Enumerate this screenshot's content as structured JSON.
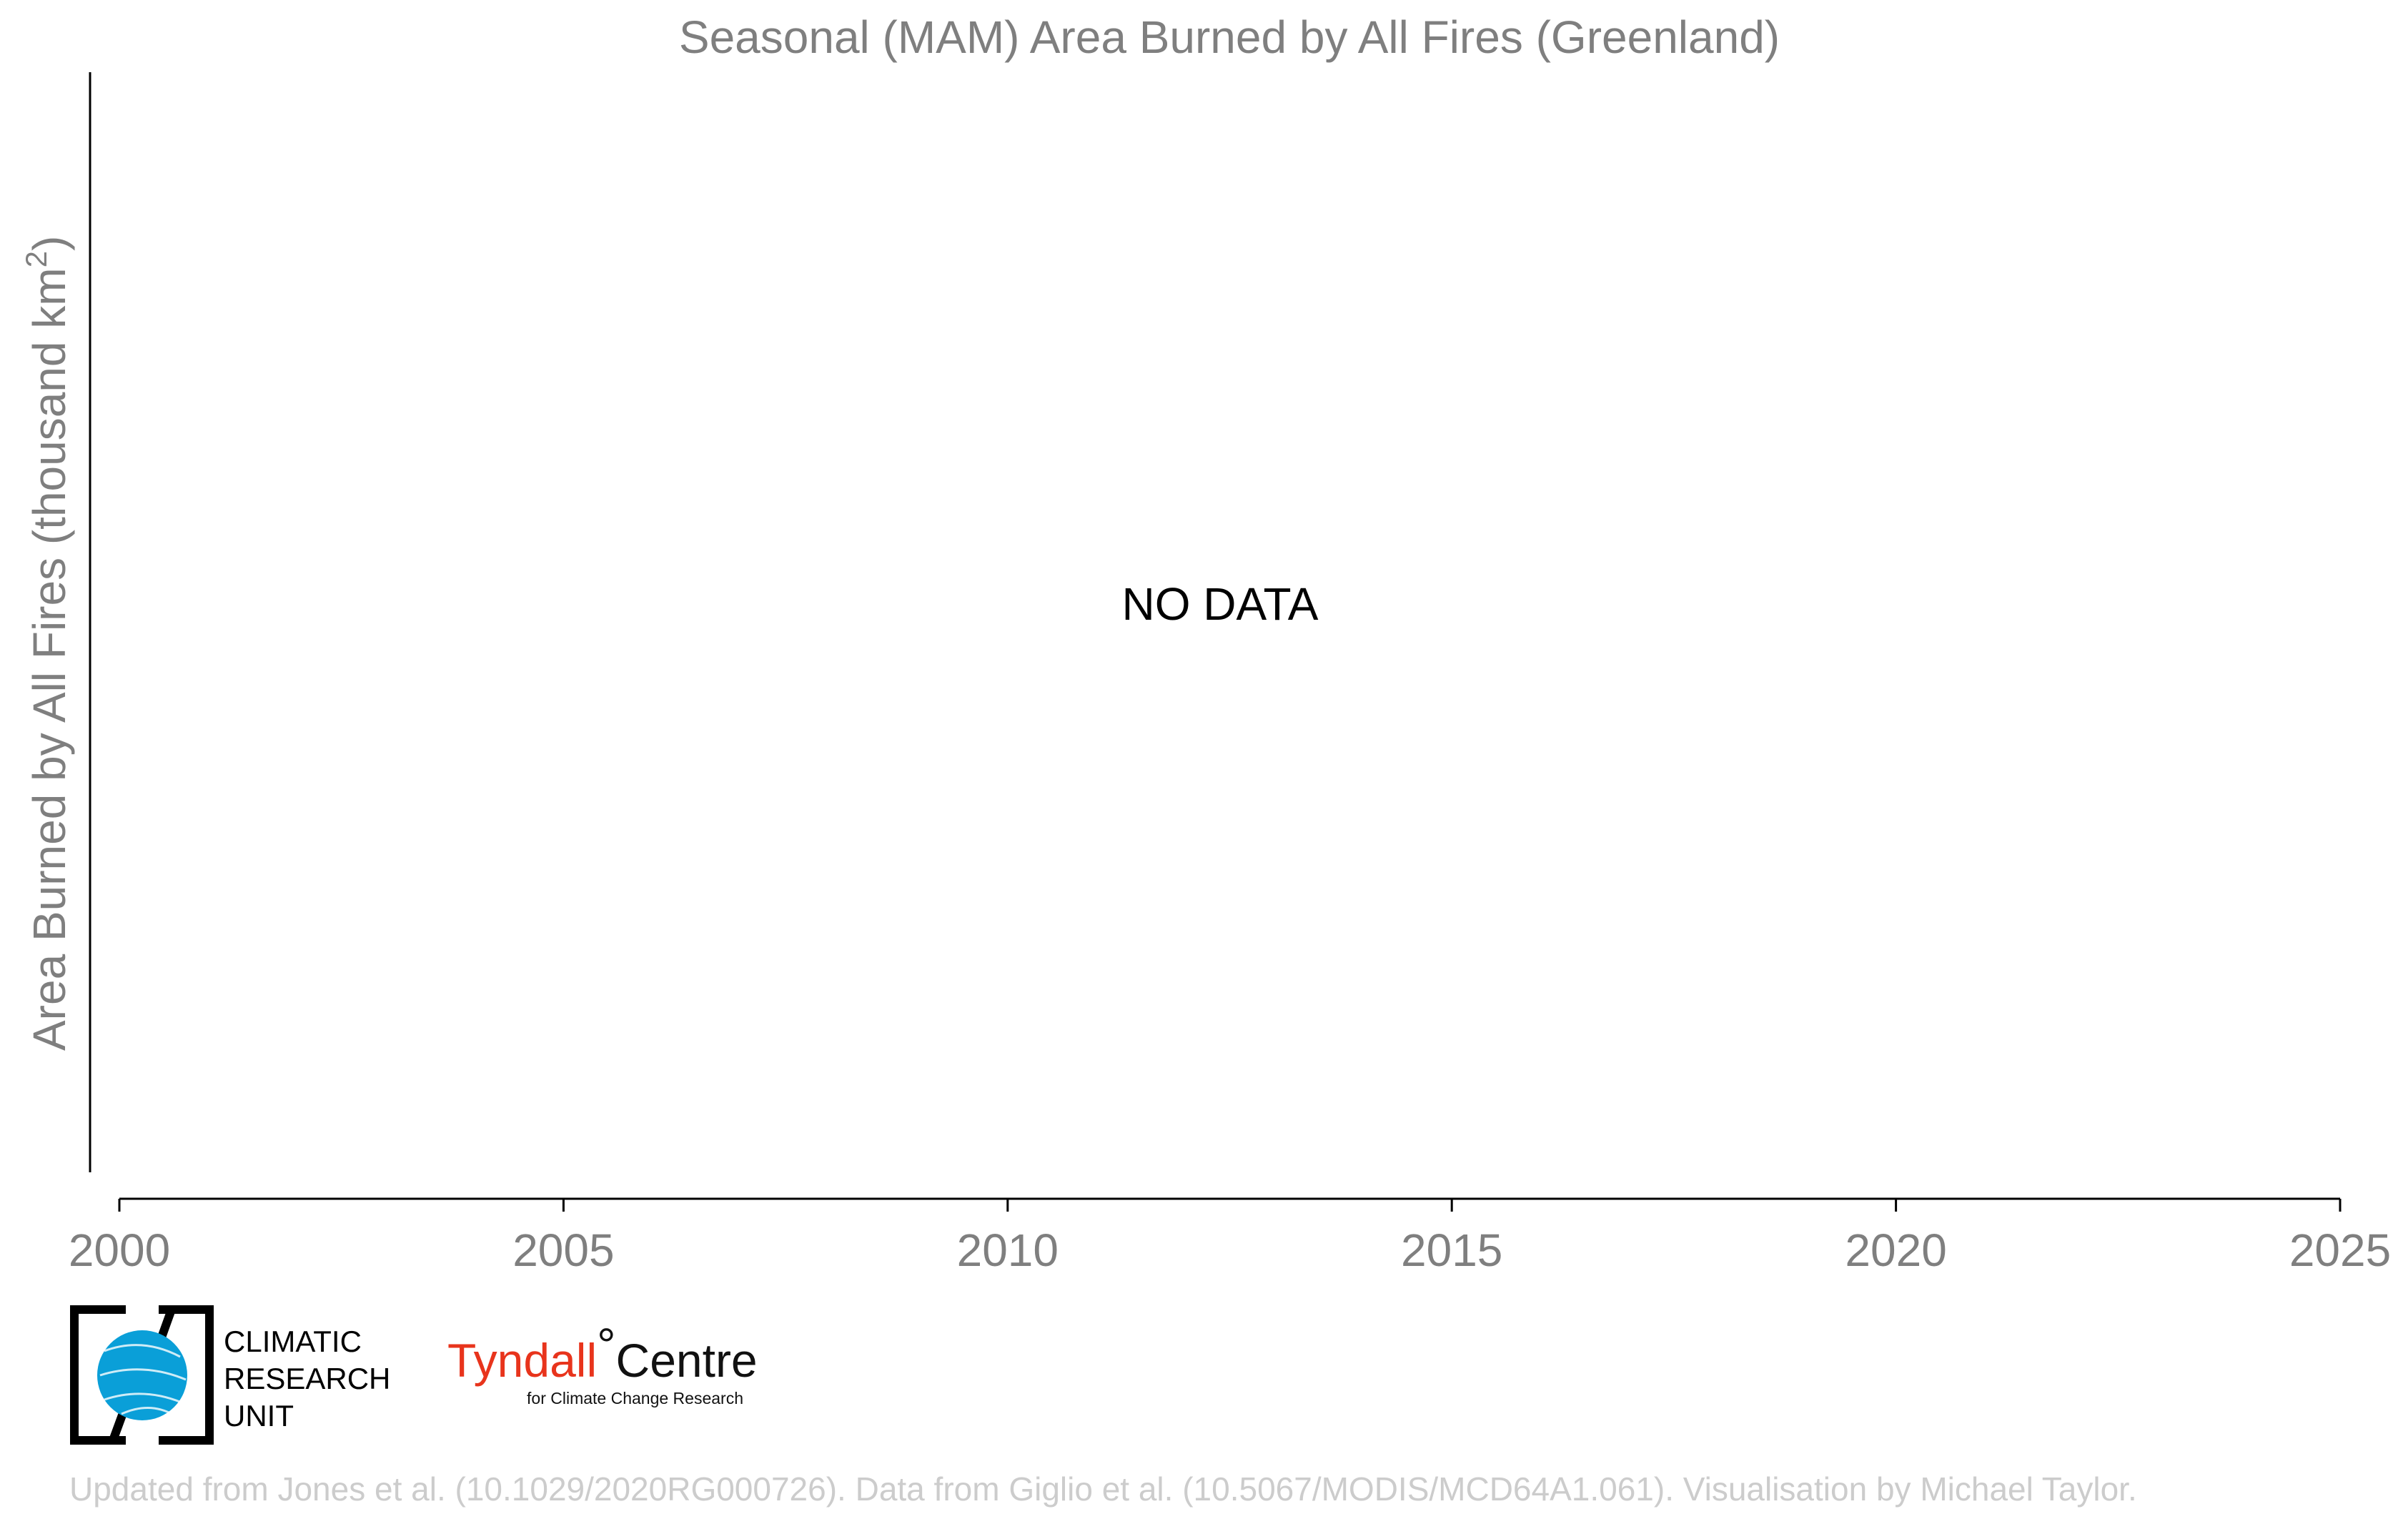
{
  "chart_data": {
    "type": "line",
    "title": "Seasonal (MAM) Area Burned by All Fires (Greenland)",
    "ylabel": "Area Burned by All Fires (thousand km",
    "ylabel_superscript": "2",
    "ylabel_close": ")",
    "xlabel": "",
    "xlim": [
      2000,
      2025
    ],
    "x_ticks": [
      2000,
      2005,
      2010,
      2015,
      2020,
      2025
    ],
    "x_tick_labels": [
      "2000",
      "2005",
      "2010",
      "2015",
      "2020",
      "2025"
    ],
    "series": [],
    "annotation": "NO DATA",
    "grid": false
  },
  "logos": {
    "cru": {
      "line1": "CLIMATIC",
      "line2": "RESEARCH",
      "line3": "UNIT"
    },
    "tyndall": {
      "name": "Tyndall",
      "degree": "°",
      "centre": "Centre",
      "subtitle": "for Climate Change Research"
    }
  },
  "credit": "Updated from Jones et al. (10.1029/2020RG000726). Data from Giglio et al. (10.5067/MODIS/MCD64A1.061). Visualisation by Michael Taylor.",
  "colors": {
    "text_grey": "#7f7f7f",
    "credit_grey": "#cccccc",
    "cru_blue": "#0a9fd8",
    "tyndall_red": "#e8341c"
  }
}
